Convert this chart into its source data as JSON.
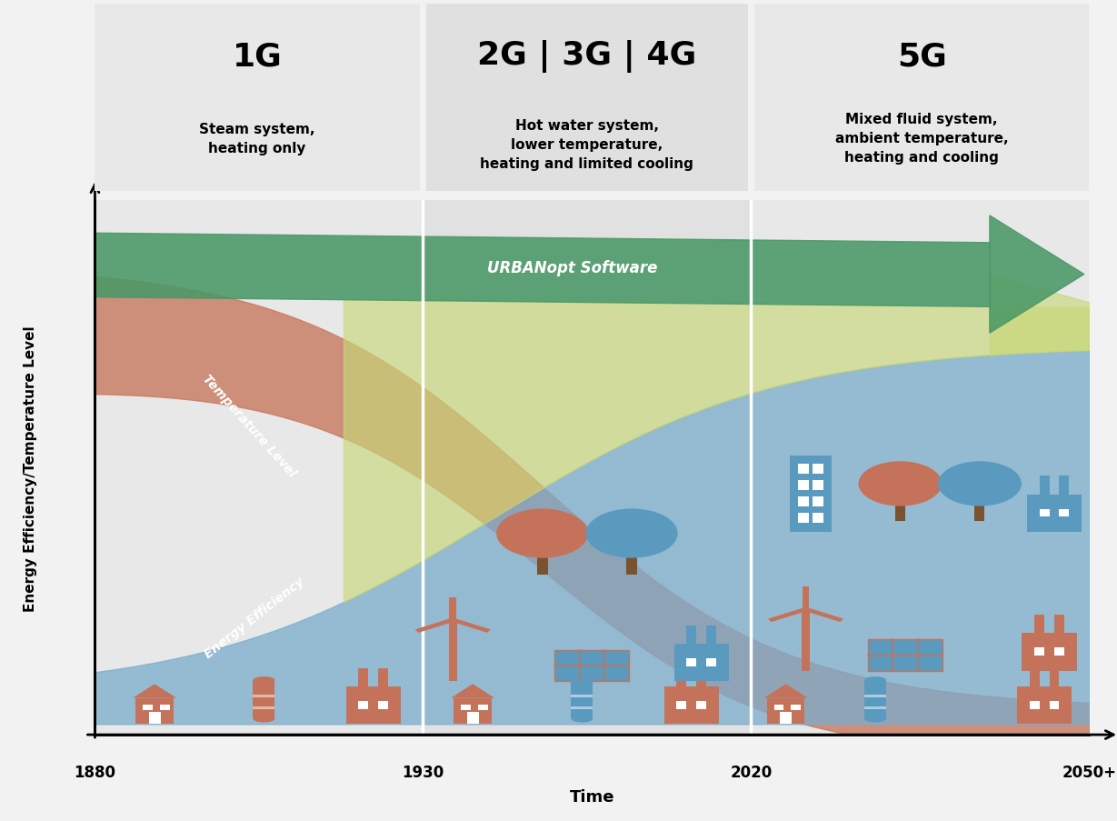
{
  "bg_color": "#f2f2f2",
  "header_color_1": "#e8e8e8",
  "header_color_2": "#e0e0e0",
  "header_color_3": "#e8e8e8",
  "plot_bg_1": "#e8e8e8",
  "plot_bg_2": "#e2e2e2",
  "plot_bg_3": "#e8e8e8",
  "divider_color": "#ffffff",
  "gen_labels": [
    "1G",
    "2G | 3G | 4G",
    "5G"
  ],
  "gen_subtitles": [
    "Steam system,\nheating only",
    "Hot water system,\nlower temperature,\nheating and limited cooling",
    "Mixed fluid system,\nambient temperature,\nheating and cooling"
  ],
  "x_tick_labels": [
    "1880",
    "1930",
    "2020",
    "2050+"
  ],
  "xlabel": "Time",
  "ylabel": "Energy Efficiency/Temperature Level",
  "temp_color": "#c87a62",
  "energy_color": "#7aadcc",
  "green_arrow_color": "#4a9966",
  "green_arrow_dark": "#3d8055",
  "yellow_green_color": "#c8d878",
  "urbanopt_text": "URBANopt Software",
  "temp_label": "Temperature Level",
  "energy_label": "Energy Efficiency",
  "icon_red": "#c4735a",
  "icon_blue": "#5a9abf"
}
